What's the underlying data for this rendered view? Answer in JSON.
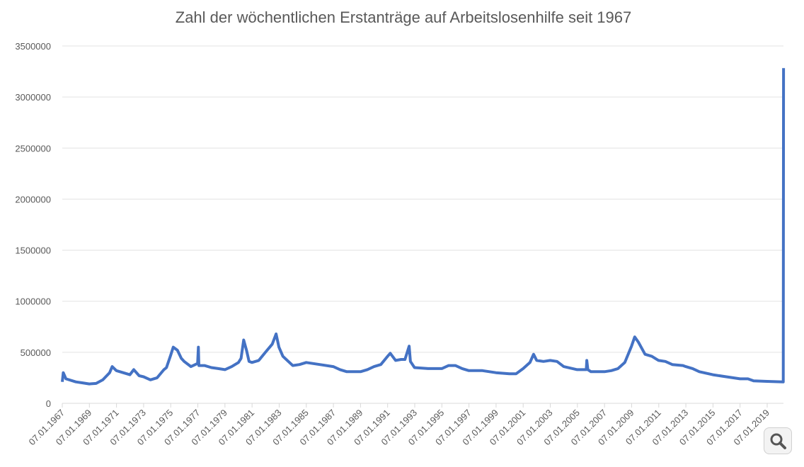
{
  "chart_data": {
    "type": "line",
    "title": "Zahl der wöchentlichen Erstanträge auf Arbeitslosenhilfe seit 1967",
    "xlabel": "",
    "ylabel": "",
    "ylim": [
      0,
      3500000
    ],
    "yticks": [
      "0",
      "500000",
      "1000000",
      "1500000",
      "2000000",
      "2500000",
      "3000000",
      "3500000"
    ],
    "xticks": [
      "07.01.1967",
      "07.01.1969",
      "07.01.1971",
      "07.01.1973",
      "07.01.1975",
      "07.01.1977",
      "07.01.1979",
      "07.01.1981",
      "07.01.1983",
      "07.01.1985",
      "07.01.1987",
      "07.01.1989",
      "07.01.1991",
      "07.01.1993",
      "07.01.1995",
      "07.01.1997",
      "07.01.1999",
      "07.01.2001",
      "07.01.2003",
      "07.01.2005",
      "07.01.2007",
      "07.01.2009",
      "07.01.2011",
      "07.01.2013",
      "07.01.2015",
      "07.01.2017",
      "07.01.2019"
    ],
    "grid": true,
    "series_color": "#4472C4",
    "series": [
      {
        "points": [
          [
            "1967-01-07",
            210000
          ],
          [
            "1967-02-04",
            300000
          ],
          [
            "1967-04-15",
            240000
          ],
          [
            "1968-01-06",
            210000
          ],
          [
            "1968-07-06",
            200000
          ],
          [
            "1969-01-04",
            190000
          ],
          [
            "1969-07-05",
            195000
          ],
          [
            "1970-01-03",
            230000
          ],
          [
            "1970-07-04",
            300000
          ],
          [
            "1970-09-12",
            360000
          ],
          [
            "1971-01-02",
            320000
          ],
          [
            "1971-07-03",
            300000
          ],
          [
            "1972-01-01",
            280000
          ],
          [
            "1972-04-15",
            330000
          ],
          [
            "1972-09-09",
            270000
          ],
          [
            "1973-01-06",
            260000
          ],
          [
            "1973-07-07",
            230000
          ],
          [
            "1974-01-05",
            250000
          ],
          [
            "1974-07-06",
            330000
          ],
          [
            "1974-09-14",
            350000
          ],
          [
            "1975-01-04",
            470000
          ],
          [
            "1975-03-15",
            550000
          ],
          [
            "1975-07-05",
            520000
          ],
          [
            "1975-10-18",
            440000
          ],
          [
            "1976-01-03",
            410000
          ],
          [
            "1976-07-03",
            360000
          ],
          [
            "1977-01-01",
            390000
          ],
          [
            "1977-01-22",
            550000
          ],
          [
            "1977-02-05",
            370000
          ],
          [
            "1977-07-02",
            370000
          ],
          [
            "1978-01-07",
            350000
          ],
          [
            "1978-07-08",
            340000
          ],
          [
            "1979-01-06",
            330000
          ],
          [
            "1979-07-07",
            360000
          ],
          [
            "1980-01-05",
            400000
          ],
          [
            "1980-03-15",
            440000
          ],
          [
            "1980-05-24",
            620000
          ],
          [
            "1980-08-09",
            520000
          ],
          [
            "1980-10-18",
            410000
          ],
          [
            "1981-01-03",
            400000
          ],
          [
            "1981-07-04",
            420000
          ],
          [
            "1982-01-02",
            500000
          ],
          [
            "1982-07-03",
            580000
          ],
          [
            "1982-10-16",
            680000
          ],
          [
            "1983-01-01",
            550000
          ],
          [
            "1983-04-16",
            460000
          ],
          [
            "1984-01-07",
            370000
          ],
          [
            "1984-07-07",
            380000
          ],
          [
            "1985-01-05",
            400000
          ],
          [
            "1986-01-04",
            380000
          ],
          [
            "1987-01-03",
            360000
          ],
          [
            "1987-07-04",
            330000
          ],
          [
            "1988-01-02",
            310000
          ],
          [
            "1989-01-07",
            310000
          ],
          [
            "1989-07-08",
            330000
          ],
          [
            "1990-01-06",
            360000
          ],
          [
            "1990-07-07",
            380000
          ],
          [
            "1991-01-05",
            460000
          ],
          [
            "1991-03-16",
            490000
          ],
          [
            "1991-08-10",
            420000
          ],
          [
            "1992-01-04",
            430000
          ],
          [
            "1992-04-18",
            430000
          ],
          [
            "1992-08-08",
            560000
          ],
          [
            "1992-09-12",
            410000
          ],
          [
            "1993-01-02",
            350000
          ],
          [
            "1994-01-01",
            340000
          ],
          [
            "1995-01-07",
            340000
          ],
          [
            "1995-07-08",
            370000
          ],
          [
            "1996-01-06",
            370000
          ],
          [
            "1996-07-06",
            340000
          ],
          [
            "1997-01-04",
            320000
          ],
          [
            "1998-01-03",
            320000
          ],
          [
            "1999-01-02",
            300000
          ],
          [
            "2000-01-01",
            290000
          ],
          [
            "2000-07-01",
            290000
          ],
          [
            "2001-01-06",
            340000
          ],
          [
            "2001-07-07",
            400000
          ],
          [
            "2001-10-13",
            480000
          ],
          [
            "2002-01-05",
            420000
          ],
          [
            "2002-07-06",
            410000
          ],
          [
            "2003-01-04",
            420000
          ],
          [
            "2003-07-05",
            410000
          ],
          [
            "2004-01-03",
            360000
          ],
          [
            "2005-01-01",
            330000
          ],
          [
            "2005-09-03",
            330000
          ],
          [
            "2005-09-17",
            420000
          ],
          [
            "2005-10-15",
            330000
          ],
          [
            "2006-01-07",
            310000
          ],
          [
            "2007-01-06",
            310000
          ],
          [
            "2007-07-07",
            320000
          ],
          [
            "2008-01-05",
            340000
          ],
          [
            "2008-07-05",
            400000
          ],
          [
            "2009-01-03",
            560000
          ],
          [
            "2009-03-28",
            650000
          ],
          [
            "2009-07-04",
            600000
          ],
          [
            "2010-01-02",
            480000
          ],
          [
            "2010-07-03",
            460000
          ],
          [
            "2011-01-01",
            420000
          ],
          [
            "2011-07-02",
            410000
          ],
          [
            "2012-01-07",
            380000
          ],
          [
            "2012-10-20",
            370000
          ],
          [
            "2013-01-05",
            360000
          ],
          [
            "2013-07-06",
            340000
          ],
          [
            "2014-01-04",
            310000
          ],
          [
            "2015-01-03",
            280000
          ],
          [
            "2016-01-02",
            260000
          ],
          [
            "2017-01-07",
            240000
          ],
          [
            "2017-08-05",
            240000
          ],
          [
            "2018-01-06",
            220000
          ],
          [
            "2019-01-05",
            215000
          ],
          [
            "2020-03-14",
            210000
          ],
          [
            "2020-03-21",
            3283000
          ]
        ]
      }
    ]
  },
  "ui": {
    "zoom_icon": "magnifier-icon"
  }
}
